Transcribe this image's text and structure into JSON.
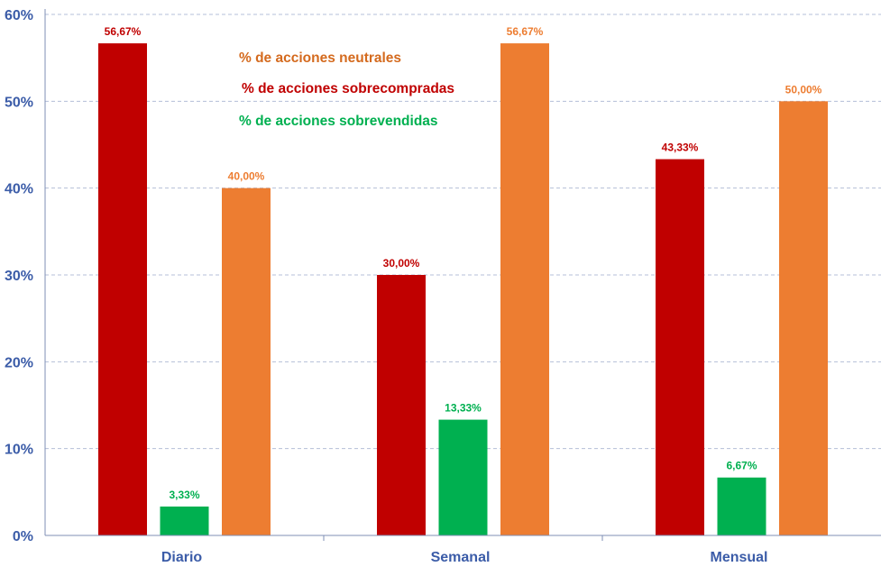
{
  "chart_data": {
    "type": "bar",
    "categories": [
      "Diario",
      "Semanal",
      "Mensual"
    ],
    "series": [
      {
        "name": "% de acciones sobrecompradas",
        "color": "#C00000",
        "values": [
          56.67,
          30.0,
          43.33
        ],
        "labels": [
          "56,67%",
          "30,00%",
          "43,33%"
        ]
      },
      {
        "name": "% de acciones sobrevendidas",
        "color": "#00B050",
        "values": [
          3.33,
          13.33,
          6.67
        ],
        "labels": [
          "3,33%",
          "13,33%",
          "6,67%"
        ]
      },
      {
        "name": "% de acciones neutrales",
        "color": "#ED7D31",
        "values": [
          40.0,
          56.67,
          50.0
        ],
        "labels": [
          "40,00%",
          "56,67%",
          "50,00%"
        ]
      }
    ],
    "legend": [
      {
        "name": "% de acciones neutrales",
        "color": "#D46A1E"
      },
      {
        "name": "% de acciones sobrecompradas",
        "color": "#C00000"
      },
      {
        "name": "% de acciones sobrevendidas",
        "color": "#00B050"
      }
    ],
    "legend_position": "top-left",
    "ylim": [
      0,
      60
    ],
    "yticks": [
      0,
      10,
      20,
      30,
      40,
      50,
      60
    ],
    "ytick_labels": [
      "0%",
      "10%",
      "20%",
      "30%",
      "40%",
      "50%",
      "60%"
    ],
    "grid": true,
    "axis_text_color": "#3B5CA8",
    "title": "",
    "xlabel": "",
    "ylabel": ""
  }
}
